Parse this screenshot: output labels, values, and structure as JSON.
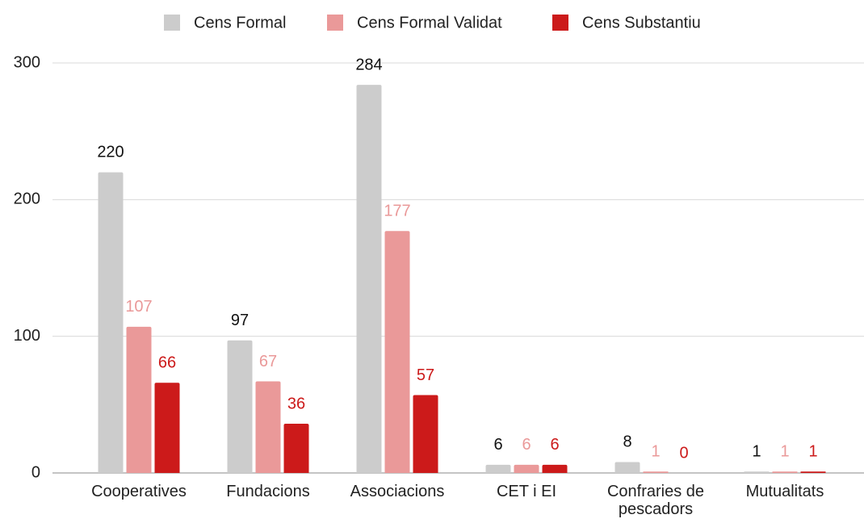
{
  "chart_data": {
    "type": "bar",
    "categories": [
      "Cooperatives",
      "Fundacions",
      "Associacions",
      "CET i EI",
      "Confraries de pescadors",
      "Mutualitats"
    ],
    "series": [
      {
        "name": "Cens Formal",
        "color": "#cccccc",
        "label_color": "#111111",
        "values": [
          220,
          97,
          284,
          6,
          8,
          1
        ]
      },
      {
        "name": "Cens Formal Validat",
        "color": "#ea9999",
        "label_color": "#ea9999",
        "values": [
          107,
          67,
          177,
          6,
          1,
          1
        ]
      },
      {
        "name": "Cens Substantiu",
        "color": "#cc1a1a",
        "label_color": "#cc1a1a",
        "values": [
          66,
          36,
          57,
          6,
          0,
          1
        ]
      }
    ],
    "ylim": [
      0,
      300
    ],
    "yticks": [
      0,
      100,
      200,
      300
    ],
    "grid": true,
    "legend": "top"
  }
}
